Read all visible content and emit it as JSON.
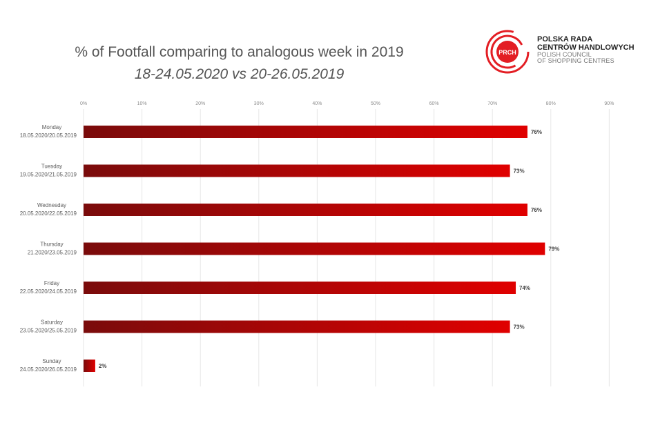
{
  "title": "% of Footfall comparing to analogous week in 2019",
  "subtitle": "18-24.05.2020 vs 20-26.05.2019",
  "logo": {
    "mark_text": "PRCH",
    "line1": "POLSKA RADA",
    "line2": "CENTRÓW HANDLOWYCH",
    "line3": "POLISH COUNCIL",
    "line4": "OF SHOPPING CENTRES",
    "brand_color": "#e31e24"
  },
  "chart_data": {
    "type": "bar",
    "orientation": "horizontal",
    "xlim": [
      0,
      90
    ],
    "x_ticks": [
      "0%",
      "10%",
      "20%",
      "30%",
      "40%",
      "50%",
      "60%",
      "70%",
      "80%",
      "90%"
    ],
    "grid": true,
    "categories": [
      [
        "Monday",
        "18.05.2020/20.05.2019"
      ],
      [
        "Tuesday",
        "19.05.2020/21.05.2019"
      ],
      [
        "Wednesday",
        "20.05.2020/22.05.2019"
      ],
      [
        "Thursday",
        "21.2020/23.05.2019"
      ],
      [
        "Friday",
        "22.05.2020/24.05.2019"
      ],
      [
        "Saturday",
        "23.05.2020/25.05.2019"
      ],
      [
        "Sunday",
        "24.05.2020/26.05.2019"
      ]
    ],
    "values": [
      76,
      73,
      76,
      79,
      74,
      73,
      2
    ],
    "value_labels": [
      "76%",
      "73%",
      "76%",
      "79%",
      "74%",
      "73%",
      "2%"
    ],
    "bar_color_dark": "#7a0b0b",
    "bar_color_light": "#e00000"
  }
}
